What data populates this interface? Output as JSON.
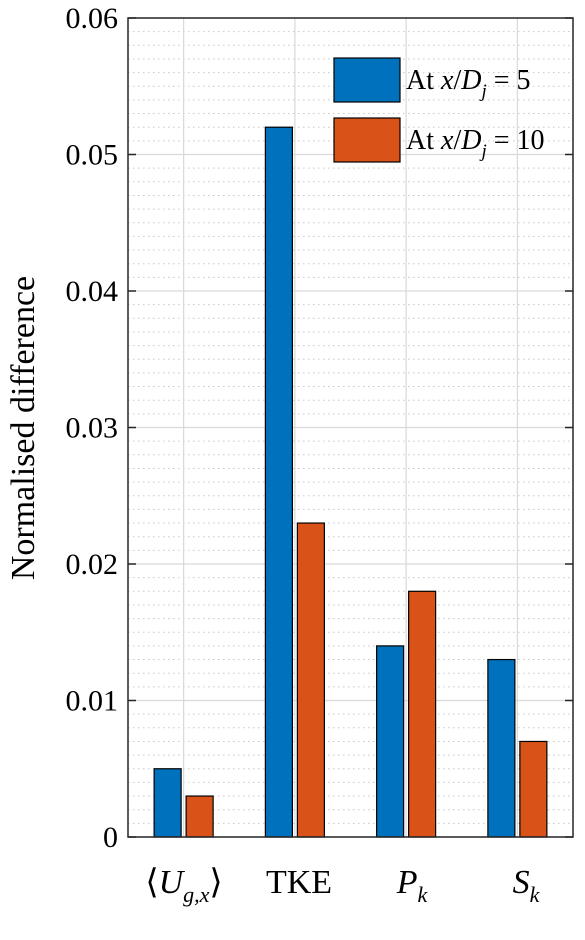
{
  "chart_data": {
    "type": "bar",
    "ylabel": "Normalised difference",
    "xlabel": "",
    "ylim": [
      0,
      0.06
    ],
    "yticks": [
      0,
      0.01,
      0.02,
      0.03,
      0.04,
      0.05,
      0.06
    ],
    "ytick_labels": [
      "0",
      "0.01",
      "0.02",
      "0.03",
      "0.04",
      "0.05",
      "0.06"
    ],
    "grid": true,
    "minor_grid": true,
    "legend_position": "top-right",
    "categories": [
      "⟨U_g,x⟩",
      "TKE",
      "P_k",
      "S_k"
    ],
    "series": [
      {
        "name": "At x/D_j = 5",
        "color": "#0072BD",
        "values": [
          0.005,
          0.052,
          0.014,
          0.013
        ]
      },
      {
        "name": "At x/D_j = 10",
        "color": "#D95319",
        "values": [
          0.003,
          0.023,
          0.018,
          0.007
        ]
      }
    ]
  },
  "labels": {
    "ylabel": "Normalised difference",
    "categories": {
      "ug": {
        "open": "⟨",
        "main": "U",
        "sub": "g,x",
        "close": "⟩"
      },
      "tke": {
        "main": "TKE"
      },
      "pk": {
        "main": "P",
        "sub": "k"
      },
      "sk": {
        "main": "S",
        "sub": "k"
      }
    },
    "legend": [
      {
        "prefix": "At ",
        "var": "x",
        "slash": "/",
        "var2": "D",
        "sub": "j",
        "suffix": " = 5"
      },
      {
        "prefix": "At ",
        "var": "x",
        "slash": "/",
        "var2": "D",
        "sub": "j",
        "suffix": " = 10"
      }
    ]
  }
}
